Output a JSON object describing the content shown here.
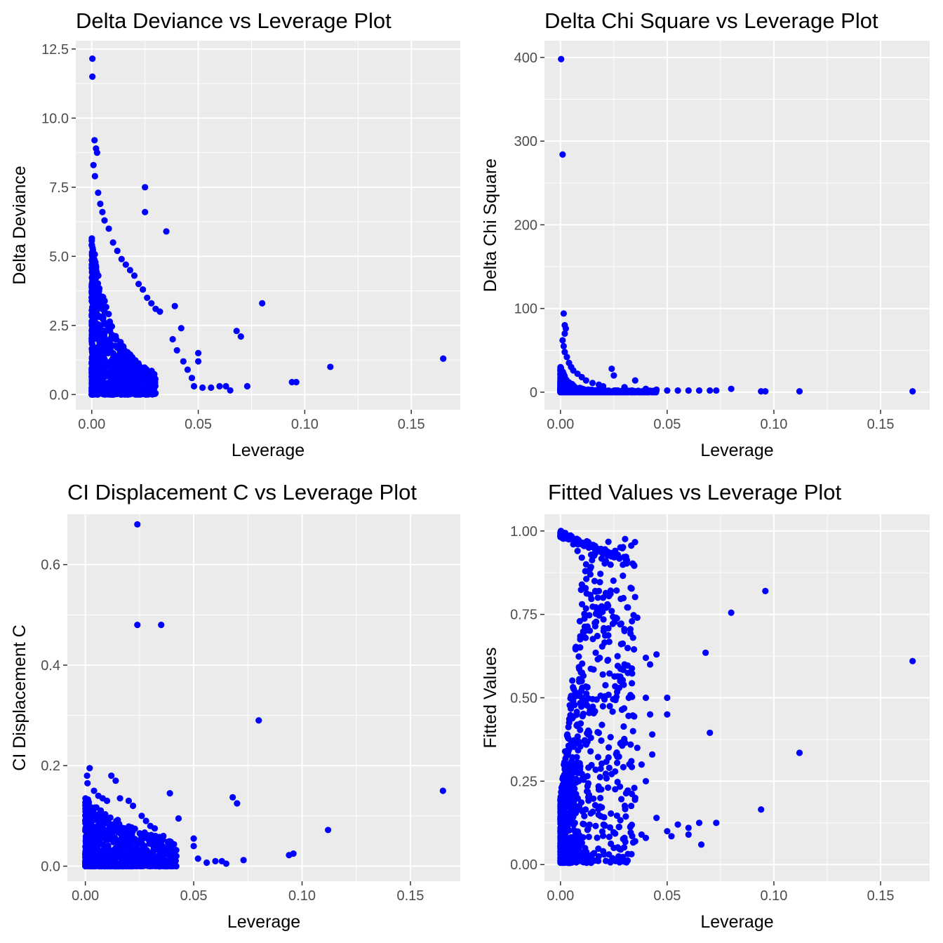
{
  "chart_data": [
    {
      "type": "scatter",
      "title": "Delta Deviance vs Leverage Plot",
      "xlabel": "Leverage",
      "ylabel": "Delta Deviance",
      "xlim": [
        -0.0075,
        0.173
      ],
      "ylim": [
        -0.55,
        12.8
      ],
      "x_ticks": [
        0.0,
        0.05,
        0.1,
        0.15
      ],
      "x_tick_labels": [
        "0.00",
        "0.05",
        "0.10",
        "0.15"
      ],
      "y_ticks": [
        0.0,
        2.5,
        5.0,
        7.5,
        10.0,
        12.5
      ],
      "y_tick_labels": [
        "0.0",
        "2.5",
        "5.0",
        "7.5",
        "10.0",
        "12.5"
      ],
      "grid": true,
      "point_color": "#0000ff",
      "cluster": {
        "shape": "deviance"
      },
      "points": [
        [
          0.0003,
          12.15
        ],
        [
          0.0003,
          11.5
        ],
        [
          0.0013,
          9.2
        ],
        [
          0.002,
          8.9
        ],
        [
          0.0025,
          8.75
        ],
        [
          0.0008,
          8.3
        ],
        [
          0.0015,
          7.9
        ],
        [
          0.003,
          7.3
        ],
        [
          0.004,
          6.9
        ],
        [
          0.005,
          6.6
        ],
        [
          0.006,
          6.3
        ],
        [
          0.008,
          6.0
        ],
        [
          0.01,
          5.5
        ],
        [
          0.012,
          5.2
        ],
        [
          0.014,
          4.9
        ],
        [
          0.016,
          4.7
        ],
        [
          0.018,
          4.5
        ],
        [
          0.02,
          4.3
        ],
        [
          0.022,
          4.0
        ],
        [
          0.024,
          3.8
        ],
        [
          0.026,
          3.5
        ],
        [
          0.028,
          3.3
        ],
        [
          0.03,
          3.1
        ],
        [
          0.032,
          3.0
        ],
        [
          0.025,
          7.5
        ],
        [
          0.025,
          6.6
        ],
        [
          0.035,
          5.9
        ],
        [
          0.039,
          3.2
        ],
        [
          0.042,
          2.4
        ],
        [
          0.038,
          2.0
        ],
        [
          0.04,
          1.6
        ],
        [
          0.043,
          1.2
        ],
        [
          0.045,
          0.9
        ],
        [
          0.047,
          0.6
        ],
        [
          0.05,
          1.5
        ],
        [
          0.05,
          1.2
        ],
        [
          0.048,
          0.3
        ],
        [
          0.052,
          0.25
        ],
        [
          0.056,
          0.25
        ],
        [
          0.06,
          0.3
        ],
        [
          0.065,
          0.15
        ],
        [
          0.063,
          0.3
        ],
        [
          0.068,
          2.3
        ],
        [
          0.07,
          2.1
        ],
        [
          0.073,
          0.3
        ],
        [
          0.08,
          3.3
        ],
        [
          0.094,
          0.45
        ],
        [
          0.096,
          0.45
        ],
        [
          0.112,
          1.0
        ],
        [
          0.165,
          1.3
        ]
      ]
    },
    {
      "type": "scatter",
      "title": "Delta Chi Square vs Leverage Plot",
      "xlabel": "Leverage",
      "ylabel": "Delta Chi Square",
      "xlim": [
        -0.0075,
        0.173
      ],
      "ylim": [
        -21,
        420
      ],
      "x_ticks": [
        0.0,
        0.05,
        0.1,
        0.15
      ],
      "x_tick_labels": [
        "0.00",
        "0.05",
        "0.10",
        "0.15"
      ],
      "y_ticks": [
        0,
        100,
        200,
        300,
        400
      ],
      "y_tick_labels": [
        "0",
        "100",
        "200",
        "300",
        "400"
      ],
      "grid": true,
      "point_color": "#0000ff",
      "cluster": {
        "shape": "chisq"
      },
      "points": [
        [
          0.0003,
          398
        ],
        [
          0.001,
          284
        ],
        [
          0.0015,
          94
        ],
        [
          0.002,
          80
        ],
        [
          0.0025,
          76
        ],
        [
          0.002,
          70
        ],
        [
          0.001,
          62
        ],
        [
          0.0015,
          55
        ],
        [
          0.002,
          48
        ],
        [
          0.003,
          42
        ],
        [
          0.004,
          35
        ],
        [
          0.005,
          30
        ],
        [
          0.006,
          26
        ],
        [
          0.008,
          22
        ],
        [
          0.01,
          18
        ],
        [
          0.012,
          14
        ],
        [
          0.015,
          11
        ],
        [
          0.018,
          9
        ],
        [
          0.02,
          7
        ],
        [
          0.024,
          28
        ],
        [
          0.025,
          20
        ],
        [
          0.035,
          14
        ],
        [
          0.03,
          6
        ],
        [
          0.04,
          4
        ],
        [
          0.045,
          3
        ],
        [
          0.05,
          2
        ],
        [
          0.055,
          2
        ],
        [
          0.06,
          2
        ],
        [
          0.065,
          2
        ],
        [
          0.07,
          2
        ],
        [
          0.073,
          2
        ],
        [
          0.08,
          4
        ],
        [
          0.094,
          1
        ],
        [
          0.096,
          1
        ],
        [
          0.112,
          1
        ],
        [
          0.165,
          1
        ]
      ]
    },
    {
      "type": "scatter",
      "title": "CI Displacement C vs Leverage Plot",
      "xlabel": "Leverage",
      "ylabel": "CI Displacement C",
      "xlim": [
        -0.0083,
        0.173
      ],
      "ylim": [
        -0.03,
        0.7
      ],
      "x_ticks": [
        0.0,
        0.05,
        0.1,
        0.15
      ],
      "x_tick_labels": [
        "0.00",
        "0.05",
        "0.10",
        "0.15"
      ],
      "y_ticks": [
        0.0,
        0.2,
        0.4,
        0.6
      ],
      "y_tick_labels": [
        "0.0",
        "0.2",
        "0.4",
        "0.6"
      ],
      "grid": true,
      "point_color": "#0000ff",
      "cluster": {
        "shape": "cook"
      },
      "points": [
        [
          0.024,
          0.68
        ],
        [
          0.024,
          0.48
        ],
        [
          0.035,
          0.48
        ],
        [
          0.08,
          0.29
        ],
        [
          0.165,
          0.15
        ],
        [
          0.112,
          0.072
        ],
        [
          0.094,
          0.022
        ],
        [
          0.096,
          0.025
        ],
        [
          0.068,
          0.137
        ],
        [
          0.07,
          0.125
        ],
        [
          0.073,
          0.012
        ],
        [
          0.039,
          0.145
        ],
        [
          0.043,
          0.095
        ],
        [
          0.05,
          0.055
        ],
        [
          0.05,
          0.04
        ],
        [
          0.052,
          0.015
        ],
        [
          0.056,
          0.007
        ],
        [
          0.06,
          0.01
        ],
        [
          0.065,
          0.005
        ],
        [
          0.063,
          0.01
        ],
        [
          0.002,
          0.195
        ],
        [
          0.0008,
          0.18
        ],
        [
          0.001,
          0.165
        ],
        [
          0.004,
          0.15
        ],
        [
          0.006,
          0.14
        ],
        [
          0.008,
          0.135
        ],
        [
          0.01,
          0.13
        ],
        [
          0.012,
          0.18
        ],
        [
          0.014,
          0.17
        ],
        [
          0.016,
          0.135
        ],
        [
          0.02,
          0.13
        ],
        [
          0.022,
          0.12
        ],
        [
          0.026,
          0.1
        ],
        [
          0.028,
          0.09
        ],
        [
          0.03,
          0.08
        ],
        [
          0.032,
          0.075
        ],
        [
          0.036,
          0.06
        ],
        [
          0.038,
          0.04
        ],
        [
          0.04,
          0.03
        ],
        [
          0.042,
          0.02
        ]
      ]
    },
    {
      "type": "scatter",
      "title": "Fitted Values vs Leverage Plot",
      "xlabel": "Leverage",
      "ylabel": "Fitted Values",
      "xlim": [
        -0.0075,
        0.173
      ],
      "ylim": [
        -0.05,
        1.05
      ],
      "x_ticks": [
        0.0,
        0.05,
        0.1,
        0.15
      ],
      "x_tick_labels": [
        "0.00",
        "0.05",
        "0.10",
        "0.15"
      ],
      "y_ticks": [
        0.0,
        0.25,
        0.5,
        0.75,
        1.0
      ],
      "y_tick_labels": [
        "0.00",
        "0.25",
        "0.50",
        "0.75",
        "1.00"
      ],
      "grid": true,
      "point_color": "#0000ff",
      "cluster": {
        "shape": "fitted"
      },
      "points": [
        [
          0.0002,
          1.0
        ],
        [
          0.001,
          0.995
        ],
        [
          0.002,
          0.99
        ],
        [
          0.003,
          0.985
        ],
        [
          0.004,
          0.975
        ],
        [
          0.006,
          0.96
        ],
        [
          0.008,
          0.94
        ],
        [
          0.01,
          0.92
        ],
        [
          0.012,
          0.9
        ],
        [
          0.014,
          0.87
        ],
        [
          0.016,
          0.85
        ],
        [
          0.018,
          0.82
        ],
        [
          0.02,
          0.8
        ],
        [
          0.022,
          0.78
        ],
        [
          0.024,
          0.76
        ],
        [
          0.026,
          0.74
        ],
        [
          0.028,
          0.72
        ],
        [
          0.03,
          0.7
        ],
        [
          0.034,
          0.68
        ],
        [
          0.036,
          0.74
        ],
        [
          0.04,
          0.62
        ],
        [
          0.045,
          0.63
        ],
        [
          0.042,
          0.6
        ],
        [
          0.04,
          0.5
        ],
        [
          0.05,
          0.5
        ],
        [
          0.05,
          0.45
        ],
        [
          0.042,
          0.45
        ],
        [
          0.043,
          0.39
        ],
        [
          0.043,
          0.33
        ],
        [
          0.04,
          0.25
        ],
        [
          0.035,
          0.2
        ],
        [
          0.045,
          0.14
        ],
        [
          0.05,
          0.1
        ],
        [
          0.052,
          0.085
        ],
        [
          0.055,
          0.12
        ],
        [
          0.06,
          0.11
        ],
        [
          0.06,
          0.09
        ],
        [
          0.065,
          0.125
        ],
        [
          0.066,
          0.06
        ],
        [
          0.068,
          0.635
        ],
        [
          0.07,
          0.395
        ],
        [
          0.073,
          0.125
        ],
        [
          0.08,
          0.755
        ],
        [
          0.094,
          0.165
        ],
        [
          0.096,
          0.82
        ],
        [
          0.112,
          0.335
        ],
        [
          0.165,
          0.61
        ],
        [
          0.03,
          0.08
        ],
        [
          0.035,
          0.07
        ],
        [
          0.038,
          0.09
        ],
        [
          0.04,
          0.08
        ],
        [
          0.025,
          0.05
        ],
        [
          0.02,
          0.04
        ],
        [
          0.015,
          0.03
        ],
        [
          0.03,
          0.6
        ],
        [
          0.028,
          0.55
        ],
        [
          0.032,
          0.5
        ],
        [
          0.034,
          0.4
        ],
        [
          0.036,
          0.35
        ],
        [
          0.038,
          0.3
        ]
      ]
    }
  ]
}
